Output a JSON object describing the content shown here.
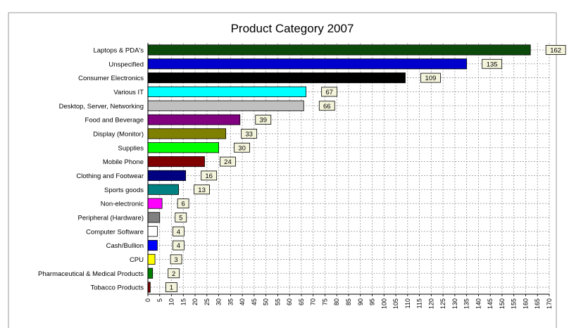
{
  "chart_data": {
    "type": "bar",
    "orientation": "horizontal",
    "title": "Product Category 2007",
    "xlabel": "",
    "ylabel": "",
    "xlim": [
      0,
      170
    ],
    "xticks": [
      0,
      5,
      10,
      15,
      20,
      25,
      30,
      35,
      40,
      45,
      50,
      55,
      60,
      65,
      70,
      75,
      80,
      85,
      90,
      95,
      100,
      105,
      110,
      115,
      120,
      125,
      130,
      135,
      140,
      145,
      150,
      155,
      160,
      165,
      170
    ],
    "grid": true,
    "legend": "none",
    "categories": [
      "Laptops & PDA's",
      "Unspecified",
      "Consumer Electronics",
      "Various IT",
      "Desktop, Server, Networking",
      "Food and Beverage",
      "Display (Monitor)",
      "Supplies",
      "Mobile Phone",
      "Clothing and Footwear",
      "Sports goods",
      "Non-electronic",
      "Peripheral (Hardware)",
      "Computer Software",
      "Cash/Bullion",
      "CPU",
      "Pharmaceutical & Medical Products",
      "Tobacco Products"
    ],
    "values": [
      162,
      135,
      109,
      67,
      66,
      39,
      33,
      30,
      24,
      16,
      13,
      6,
      5,
      4,
      4,
      3,
      2,
      1
    ],
    "labels": [
      "162",
      "135",
      "109",
      "67",
      "66",
      "39",
      "33",
      "30",
      "24",
      "16",
      "13",
      "6",
      "5",
      "4",
      "4",
      "3",
      "2",
      "1"
    ],
    "colors": [
      "#0b4a0b",
      "#0000cc",
      "#000000",
      "#00ffff",
      "#c0c0c0",
      "#800080",
      "#808000",
      "#00ff00",
      "#800000",
      "#000080",
      "#008080",
      "#ff00ff",
      "#808080",
      "#ffffff",
      "#0000ff",
      "#ffff00",
      "#008000",
      "#800000"
    ]
  }
}
